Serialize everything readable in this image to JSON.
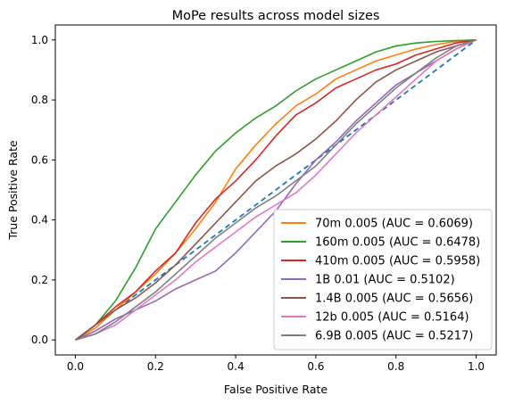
{
  "chart_data": {
    "type": "line",
    "title": "MoPe results across model sizes",
    "xlabel": "False Positive Rate",
    "ylabel": "True Positive Rate",
    "xlim": [
      -0.05,
      1.05
    ],
    "ylim": [
      -0.05,
      1.05
    ],
    "xticks": [
      "0.0",
      "0.2",
      "0.4",
      "0.6",
      "0.8",
      "1.0"
    ],
    "yticks": [
      "0.0",
      "0.2",
      "0.4",
      "0.6",
      "0.8",
      "1.0"
    ],
    "grid": false,
    "legend_position": "lower-right",
    "reference_line": {
      "x": [
        0,
        1
      ],
      "y": [
        0,
        1
      ],
      "color": "#1f77b4",
      "style": "dashed"
    },
    "series": [
      {
        "name": "70m 0.005 (AUC = 0.6069)",
        "color": "#ff7f0e",
        "x": [
          0,
          0.05,
          0.1,
          0.15,
          0.2,
          0.25,
          0.3,
          0.35,
          0.4,
          0.45,
          0.5,
          0.55,
          0.6,
          0.65,
          0.7,
          0.75,
          0.8,
          0.85,
          0.9,
          0.95,
          1.0
        ],
        "y": [
          0,
          0.04,
          0.1,
          0.16,
          0.22,
          0.29,
          0.37,
          0.46,
          0.57,
          0.65,
          0.72,
          0.78,
          0.82,
          0.87,
          0.9,
          0.93,
          0.95,
          0.97,
          0.985,
          0.995,
          1.0
        ]
      },
      {
        "name": "160m 0.005 (AUC = 0.6478)",
        "color": "#2ca02c",
        "x": [
          0,
          0.05,
          0.1,
          0.15,
          0.2,
          0.25,
          0.3,
          0.35,
          0.4,
          0.45,
          0.5,
          0.55,
          0.6,
          0.65,
          0.7,
          0.75,
          0.8,
          0.85,
          0.9,
          0.95,
          1.0
        ],
        "y": [
          0,
          0.05,
          0.13,
          0.24,
          0.37,
          0.46,
          0.55,
          0.63,
          0.69,
          0.74,
          0.78,
          0.83,
          0.87,
          0.9,
          0.93,
          0.96,
          0.98,
          0.99,
          0.995,
          0.998,
          1.0
        ]
      },
      {
        "name": "410m 0.005 (AUC = 0.5958)",
        "color": "#d62728",
        "x": [
          0,
          0.05,
          0.1,
          0.15,
          0.2,
          0.25,
          0.3,
          0.35,
          0.4,
          0.45,
          0.5,
          0.55,
          0.6,
          0.65,
          0.7,
          0.75,
          0.8,
          0.85,
          0.9,
          0.95,
          1.0
        ],
        "y": [
          0,
          0.05,
          0.11,
          0.16,
          0.23,
          0.29,
          0.39,
          0.47,
          0.53,
          0.6,
          0.68,
          0.75,
          0.79,
          0.84,
          0.87,
          0.9,
          0.92,
          0.95,
          0.97,
          0.99,
          1.0
        ]
      },
      {
        "name": "1B 0.01 (AUC = 0.5102)",
        "color": "#9467bd",
        "x": [
          0,
          0.05,
          0.1,
          0.15,
          0.2,
          0.25,
          0.3,
          0.35,
          0.4,
          0.45,
          0.5,
          0.55,
          0.6,
          0.65,
          0.7,
          0.75,
          0.8,
          0.85,
          0.9,
          0.95,
          1.0
        ],
        "y": [
          0,
          0.03,
          0.07,
          0.1,
          0.13,
          0.17,
          0.2,
          0.23,
          0.29,
          0.36,
          0.43,
          0.52,
          0.6,
          0.66,
          0.73,
          0.79,
          0.85,
          0.89,
          0.93,
          0.97,
          1.0
        ]
      },
      {
        "name": "1.4B 0.005 (AUC = 0.5656)",
        "color": "#8c564b",
        "x": [
          0,
          0.05,
          0.1,
          0.15,
          0.2,
          0.25,
          0.3,
          0.35,
          0.4,
          0.45,
          0.5,
          0.55,
          0.6,
          0.65,
          0.7,
          0.75,
          0.8,
          0.85,
          0.9,
          0.95,
          1.0
        ],
        "y": [
          0,
          0.05,
          0.1,
          0.14,
          0.19,
          0.25,
          0.32,
          0.39,
          0.46,
          0.53,
          0.58,
          0.62,
          0.67,
          0.73,
          0.8,
          0.86,
          0.9,
          0.93,
          0.96,
          0.98,
          1.0
        ]
      },
      {
        "name": "12b 0.005 (AUC = 0.5164)",
        "color": "#e377c2",
        "x": [
          0,
          0.05,
          0.1,
          0.15,
          0.2,
          0.25,
          0.3,
          0.35,
          0.4,
          0.45,
          0.5,
          0.55,
          0.6,
          0.65,
          0.7,
          0.75,
          0.8,
          0.85,
          0.9,
          0.95,
          1.0
        ],
        "y": [
          0,
          0.02,
          0.05,
          0.1,
          0.15,
          0.2,
          0.26,
          0.31,
          0.36,
          0.41,
          0.45,
          0.49,
          0.55,
          0.62,
          0.69,
          0.75,
          0.81,
          0.87,
          0.93,
          0.97,
          1.0
        ]
      },
      {
        "name": "6.9B 0.005 (AUC = 0.5217)",
        "color": "#7f7f7f",
        "x": [
          0,
          0.05,
          0.1,
          0.15,
          0.2,
          0.25,
          0.3,
          0.35,
          0.4,
          0.45,
          0.5,
          0.55,
          0.6,
          0.65,
          0.7,
          0.75,
          0.8,
          0.85,
          0.9,
          0.95,
          1.0
        ],
        "y": [
          0,
          0.02,
          0.06,
          0.11,
          0.16,
          0.22,
          0.28,
          0.34,
          0.39,
          0.44,
          0.48,
          0.53,
          0.58,
          0.65,
          0.72,
          0.78,
          0.84,
          0.89,
          0.94,
          0.98,
          1.0
        ]
      }
    ]
  }
}
